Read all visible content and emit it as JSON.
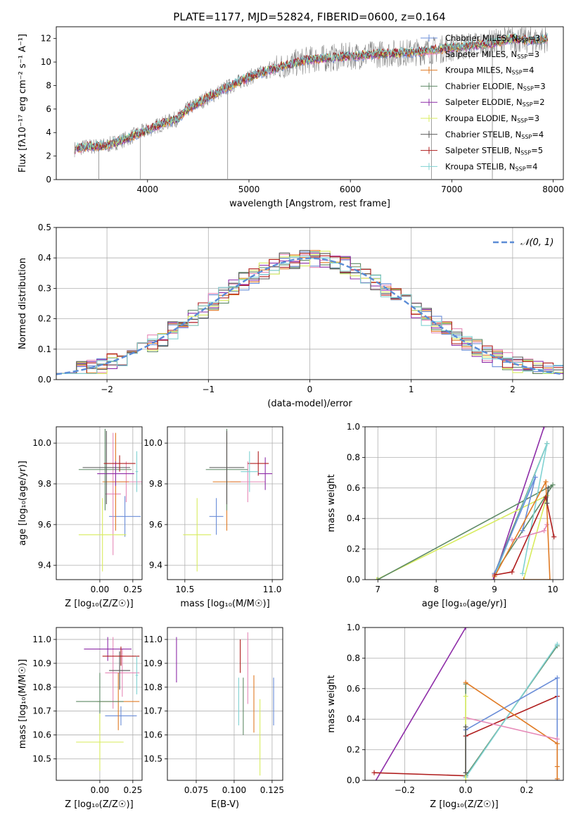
{
  "figure": {
    "title": "PLATE=1177, MJD=52824, FIBERID=0600, z=0.164"
  },
  "models": [
    {
      "name": "Chabrier MILES",
      "nssp": "3",
      "color": "#6a8dd8"
    },
    {
      "name": "Salpeter MILES",
      "nssp": "3",
      "color": "#e68ab8"
    },
    {
      "name": "Kroupa MILES",
      "nssp": "4",
      "color": "#e07b25"
    },
    {
      "name": "Chabrier ELODIE",
      "nssp": "3",
      "color": "#5e8a66"
    },
    {
      "name": "Salpeter ELODIE",
      "nssp": "2",
      "color": "#8e2da8"
    },
    {
      "name": "Kroupa ELODIE",
      "nssp": "3",
      "color": "#d8ec5e"
    },
    {
      "name": "Chabrier STELIB",
      "nssp": "4",
      "color": "#555555"
    },
    {
      "name": "Salpeter STELIB",
      "nssp": "5",
      "color": "#b01e1e"
    },
    {
      "name": "Kroupa STELIB",
      "nssp": "4",
      "color": "#80d2d2"
    }
  ],
  "chart_data": [
    {
      "id": "spectrum",
      "type": "line",
      "xlabel": "wavelength [Angstrom, rest frame]",
      "ylabel": "Flux [fλ10⁻¹⁷ erg cm⁻² s⁻¹ A⁻¹]",
      "xlim": [
        3100,
        8100
      ],
      "ylim": [
        0,
        13
      ],
      "xticks": [
        "4000",
        "5000",
        "6000",
        "7000",
        "8000"
      ],
      "yticks": [
        "0",
        "2",
        "4",
        "6",
        "8",
        "10",
        "12"
      ],
      "continuum": [
        [
          3280,
          2.6
        ],
        [
          3400,
          2.8
        ],
        [
          3600,
          2.9
        ],
        [
          3700,
          3.2
        ],
        [
          3800,
          3.5
        ],
        [
          3900,
          3.9
        ],
        [
          4000,
          4.2
        ],
        [
          4100,
          4.6
        ],
        [
          4200,
          4.9
        ],
        [
          4300,
          5.2
        ],
        [
          4400,
          6.0
        ],
        [
          4600,
          7.0
        ],
        [
          4800,
          7.9
        ],
        [
          5000,
          8.7
        ],
        [
          5300,
          9.6
        ],
        [
          5600,
          10.2
        ],
        [
          6000,
          10.5
        ],
        [
          6300,
          10.7
        ],
        [
          6600,
          10.8
        ],
        [
          7000,
          11.2
        ],
        [
          7400,
          11.6
        ],
        [
          7600,
          12.0
        ],
        [
          7800,
          11.8
        ],
        [
          7950,
          12.0
        ]
      ],
      "data_spikes": [
        [
          3520,
          0.0
        ],
        [
          3930,
          0.0
        ],
        [
          4790,
          0.0
        ],
        [
          6800,
          0.0
        ],
        [
          7400,
          0.0
        ]
      ],
      "legend_position": "right"
    },
    {
      "id": "residuals",
      "type": "histogram",
      "xlabel": "(data-model)/error",
      "ylabel": "Normed distribution",
      "xlim": [
        -2.5,
        2.5
      ],
      "ylim": [
        0,
        0.5
      ],
      "xticks": [
        "−2",
        "−1",
        "0",
        "1",
        "2"
      ],
      "yticks": [
        "0.0",
        "0.1",
        "0.2",
        "0.3",
        "0.4",
        "0.5"
      ],
      "bin_width": 0.1,
      "reference_curve": {
        "name": "𝒩(0, 1)",
        "color": "#5b8cd6",
        "style": "dashed"
      },
      "legend_position": "upper right"
    },
    {
      "id": "age-vs-Z",
      "type": "errorbar",
      "xlabel": "Z [log₁₀(Z/Z☉)]",
      "ylabel": "age  [log₁₀(age/yr)]",
      "xlim": [
        -0.33,
        0.32
      ],
      "ylim": [
        9.33,
        10.08
      ],
      "xticks": [
        "0.00",
        "0.25"
      ],
      "xtick_values": [
        0,
        0.25
      ],
      "yticks": [
        "9.4",
        "9.6",
        "9.8",
        "10.0"
      ],
      "ytick_values": [
        9.4,
        9.6,
        9.8,
        10.0
      ],
      "points": [
        {
          "model": 0,
          "x": 0.19,
          "y": 9.64,
          "xerr": 0.12,
          "yerr": 0.1
        },
        {
          "model": 1,
          "x": 0.2,
          "y": 9.81,
          "xerr": 0.12,
          "yerr": 0.1
        },
        {
          "model": 1,
          "x": 0.1,
          "y": 9.75,
          "xerr": 0.06,
          "yerr": 0.3
        },
        {
          "model": 2,
          "x": 0.12,
          "y": 9.81,
          "xerr": 0.1,
          "yerr": 0.24
        },
        {
          "model": 3,
          "x": 0.04,
          "y": 9.87,
          "xerr": 0.2,
          "yerr": 0.2
        },
        {
          "model": 4,
          "x": 0.12,
          "y": 9.85,
          "xerr": 0.14,
          "yerr": 0.06
        },
        {
          "model": 5,
          "x": 0.02,
          "y": 9.55,
          "xerr": 0.18,
          "yerr": 0.18
        },
        {
          "model": 6,
          "x": 0.05,
          "y": 9.88,
          "xerr": 0.18,
          "yerr": 0.18
        },
        {
          "model": 7,
          "x": 0.15,
          "y": 9.9,
          "xerr": 0.12,
          "yerr": 0.04
        },
        {
          "model": 8,
          "x": 0.28,
          "y": 9.86,
          "xerr": 0.01,
          "yerr": 0.1
        }
      ]
    },
    {
      "id": "age-vs-mass",
      "type": "errorbar",
      "xlabel": "mass [log₁₀(M/M☉)]",
      "ylabel": "",
      "xlim": [
        10.4,
        11.06
      ],
      "ylim": [
        9.33,
        10.08
      ],
      "xticks": [
        "10.5",
        "11.0"
      ],
      "xtick_values": [
        10.5,
        11.0
      ],
      "yticks": [
        "9.4",
        "9.6",
        "9.8",
        "10.0"
      ],
      "ytick_values": [
        9.4,
        9.6,
        9.8,
        10.0
      ],
      "points": [
        {
          "model": 0,
          "x": 10.68,
          "y": 9.64,
          "xerr": 0.04,
          "yerr": 0.09
        },
        {
          "model": 1,
          "x": 10.86,
          "y": 9.81,
          "xerr": 0.1,
          "yerr": 0.1
        },
        {
          "model": 2,
          "x": 10.74,
          "y": 9.81,
          "xerr": 0.08,
          "yerr": 0.24
        },
        {
          "model": 3,
          "x": 10.74,
          "y": 9.87,
          "xerr": 0.12,
          "yerr": 0.2
        },
        {
          "model": 4,
          "x": 10.96,
          "y": 9.85,
          "xerr": 0.04,
          "yerr": 0.08
        },
        {
          "model": 5,
          "x": 10.57,
          "y": 9.55,
          "xerr": 0.08,
          "yerr": 0.18
        },
        {
          "model": 6,
          "x": 10.74,
          "y": 9.88,
          "xerr": 0.1,
          "yerr": 0.18
        },
        {
          "model": 7,
          "x": 10.92,
          "y": 9.9,
          "xerr": 0.06,
          "yerr": 0.06
        },
        {
          "model": 8,
          "x": 10.87,
          "y": 9.86,
          "xerr": 0.05,
          "yerr": 0.1
        }
      ]
    },
    {
      "id": "weight-vs-age",
      "type": "line",
      "xlabel": "age  [log₁₀(age/yr)]",
      "ylabel": "mass weight",
      "xlim": [
        6.78,
        10.18
      ],
      "ylim": [
        0,
        1
      ],
      "xticks": [
        "7",
        "8",
        "9",
        "10"
      ],
      "xtick_values": [
        7,
        8,
        9,
        10
      ],
      "yticks": [
        "0.0",
        "0.2",
        "0.4",
        "0.6",
        "0.8",
        "1.0"
      ],
      "ytick_values": [
        0,
        0.2,
        0.4,
        0.6,
        0.8,
        1.0
      ],
      "series": [
        {
          "model": 4,
          "points": [
            [
              8.98,
              0.0
            ],
            [
              9.85,
              1.0
            ]
          ]
        },
        {
          "model": 5,
          "points": [
            [
              6.98,
              0.0
            ],
            [
              9.9,
              0.55
            ],
            [
              9.5,
              0.0
            ]
          ]
        },
        {
          "model": 3,
          "points": [
            [
              7.0,
              0.0
            ],
            [
              10.0,
              0.62
            ],
            [
              9.0,
              0.04
            ],
            [
              9.9,
              0.89
            ]
          ]
        },
        {
          "model": 8,
          "points": [
            [
              9.0,
              0.02
            ],
            [
              9.9,
              0.89
            ],
            [
              9.48,
              0.04
            ]
          ]
        },
        {
          "model": 0,
          "points": [
            [
              9.0,
              0.04
            ],
            [
              9.7,
              0.67
            ],
            [
              9.48,
              0.32
            ]
          ]
        },
        {
          "model": 1,
          "points": [
            [
              9.3,
              0.26
            ],
            [
              9.85,
              0.32
            ],
            [
              9.9,
              0.36
            ]
          ]
        },
        {
          "model": 2,
          "points": [
            [
              9.0,
              0.02
            ],
            [
              9.88,
              0.64
            ],
            [
              9.95,
              0.0
            ],
            [
              9.5,
              0.0
            ]
          ]
        },
        {
          "model": 7,
          "points": [
            [
              9.0,
              0.03
            ],
            [
              9.3,
              0.05
            ],
            [
              9.88,
              0.54
            ],
            [
              10.02,
              0.28
            ]
          ]
        },
        {
          "model": 6,
          "points": [
            [
              9.9,
              0.5
            ],
            [
              9.92,
              0.6
            ]
          ]
        }
      ]
    },
    {
      "id": "mass-vs-Z",
      "type": "errorbar",
      "xlabel": "Z [log₁₀(Z/Z☉)]",
      "ylabel": "mass [log₁₀(M/M☉)]",
      "xlim": [
        -0.33,
        0.32
      ],
      "ylim": [
        10.41,
        11.05
      ],
      "xticks": [
        "0.00",
        "0.25"
      ],
      "xtick_values": [
        0,
        0.25
      ],
      "yticks": [
        "10.5",
        "10.6",
        "10.7",
        "10.8",
        "10.9",
        "11.0"
      ],
      "ytick_values": [
        10.5,
        10.6,
        10.7,
        10.8,
        10.9,
        11.0
      ],
      "points": [
        {
          "model": 0,
          "x": 0.16,
          "y": 10.68,
          "xerr": 0.12,
          "yerr": 0.04
        },
        {
          "model": 1,
          "x": 0.17,
          "y": 10.86,
          "xerr": 0.13,
          "yerr": 0.1
        },
        {
          "model": 1,
          "x": 0.1,
          "y": 10.86,
          "xerr": 0.02,
          "yerr": 0.15
        },
        {
          "model": 2,
          "x": 0.14,
          "y": 10.74,
          "xerr": 0.16,
          "yerr": 0.12
        },
        {
          "model": 3,
          "x": 0.0,
          "y": 10.74,
          "xerr": 0.18,
          "yerr": 0.12
        },
        {
          "model": 4,
          "x": 0.06,
          "y": 10.96,
          "xerr": 0.18,
          "yerr": 0.05
        },
        {
          "model": 5,
          "x": 0.0,
          "y": 10.57,
          "xerr": 0.18,
          "yerr": 0.12
        },
        {
          "model": 6,
          "x": 0.15,
          "y": 10.87,
          "xerr": 0.08,
          "yerr": 0.08
        },
        {
          "model": 7,
          "x": 0.16,
          "y": 10.93,
          "xerr": 0.14,
          "yerr": 0.04
        },
        {
          "model": 8,
          "x": 0.28,
          "y": 10.85,
          "xerr": 0.01,
          "yerr": 0.08
        }
      ]
    },
    {
      "id": "mass-vs-ebv",
      "type": "errorbar",
      "xlabel": "E(B-V)",
      "ylabel": "",
      "xlim": [
        0.056,
        0.132
      ],
      "ylim": [
        10.41,
        11.05
      ],
      "xticks": [
        "0.075",
        "0.100",
        "0.125"
      ],
      "xtick_values": [
        0.075,
        0.1,
        0.125
      ],
      "yticks": [
        "10.5",
        "10.6",
        "10.7",
        "10.8",
        "10.9",
        "11.0"
      ],
      "ytick_values": [
        10.5,
        10.6,
        10.7,
        10.8,
        10.9,
        11.0
      ],
      "points": [
        {
          "model": 4,
          "x": 0.062,
          "y": 10.915,
          "xerr": 0.0,
          "yerr": 0.095
        },
        {
          "model": 8,
          "x": 0.103,
          "y": 10.74,
          "xerr": 0.0,
          "yerr": 0.1
        },
        {
          "model": 7,
          "x": 0.104,
          "y": 10.93,
          "xerr": 0.0,
          "yerr": 0.07
        },
        {
          "model": 3,
          "x": 0.106,
          "y": 10.72,
          "xerr": 0.0,
          "yerr": 0.12
        },
        {
          "model": 1,
          "x": 0.109,
          "y": 10.88,
          "xerr": 0.0,
          "yerr": 0.15
        },
        {
          "model": 2,
          "x": 0.113,
          "y": 10.73,
          "xerr": 0.0,
          "yerr": 0.12
        },
        {
          "model": 5,
          "x": 0.117,
          "y": 10.59,
          "xerr": 0.0,
          "yerr": 0.16
        },
        {
          "model": 0,
          "x": 0.126,
          "y": 10.74,
          "xerr": 0.0,
          "yerr": 0.1
        }
      ]
    },
    {
      "id": "weight-vs-Z",
      "type": "line",
      "xlabel": "Z [log₁₀(Z/Z☉)]",
      "ylabel": "mass weight",
      "xlim": [
        -0.33,
        0.32
      ],
      "ylim": [
        0,
        1
      ],
      "xticks": [
        "−0.2",
        "0.0",
        "0.2"
      ],
      "xtick_values": [
        -0.2,
        0,
        0.2
      ],
      "yticks": [
        "0.0",
        "0.2",
        "0.4",
        "0.6",
        "0.8",
        "1.0"
      ],
      "ytick_values": [
        0,
        0.2,
        0.4,
        0.6,
        0.8,
        1.0
      ],
      "series": [
        {
          "model": 4,
          "points": [
            [
              -0.3,
              -0.02
            ],
            [
              0.0,
              1.0
            ]
          ]
        },
        {
          "model": 7,
          "points": [
            [
              -0.3,
              0.05
            ],
            [
              0.0,
              0.03
            ],
            [
              0.0,
              0.29
            ],
            [
              0.3,
              0.55
            ]
          ]
        },
        {
          "model": 3,
          "points": [
            [
              0.0,
              0.63
            ],
            [
              0.0,
              0.03
            ],
            [
              0.3,
              0.88
            ]
          ]
        },
        {
          "model": 8,
          "points": [
            [
              0.0,
              0.02
            ],
            [
              0.3,
              0.89
            ]
          ]
        },
        {
          "model": 0,
          "points": [
            [
              0.0,
              0.33
            ],
            [
              0.3,
              0.67
            ],
            [
              0.3,
              0.0
            ]
          ]
        },
        {
          "model": 2,
          "points": [
            [
              0.0,
              0.64
            ],
            [
              0.3,
              0.24
            ],
            [
              0.3,
              0.09
            ],
            [
              0.3,
              0.01
            ]
          ]
        },
        {
          "model": 1,
          "points": [
            [
              0.0,
              0.41
            ],
            [
              0.3,
              0.27
            ]
          ]
        },
        {
          "model": 5,
          "points": [
            [
              0.0,
              0.55
            ],
            [
              0.0,
              0.0
            ]
          ]
        },
        {
          "model": 6,
          "points": [
            [
              0.0,
              0.35
            ],
            [
              0.0,
              0.05
            ]
          ]
        }
      ]
    }
  ]
}
